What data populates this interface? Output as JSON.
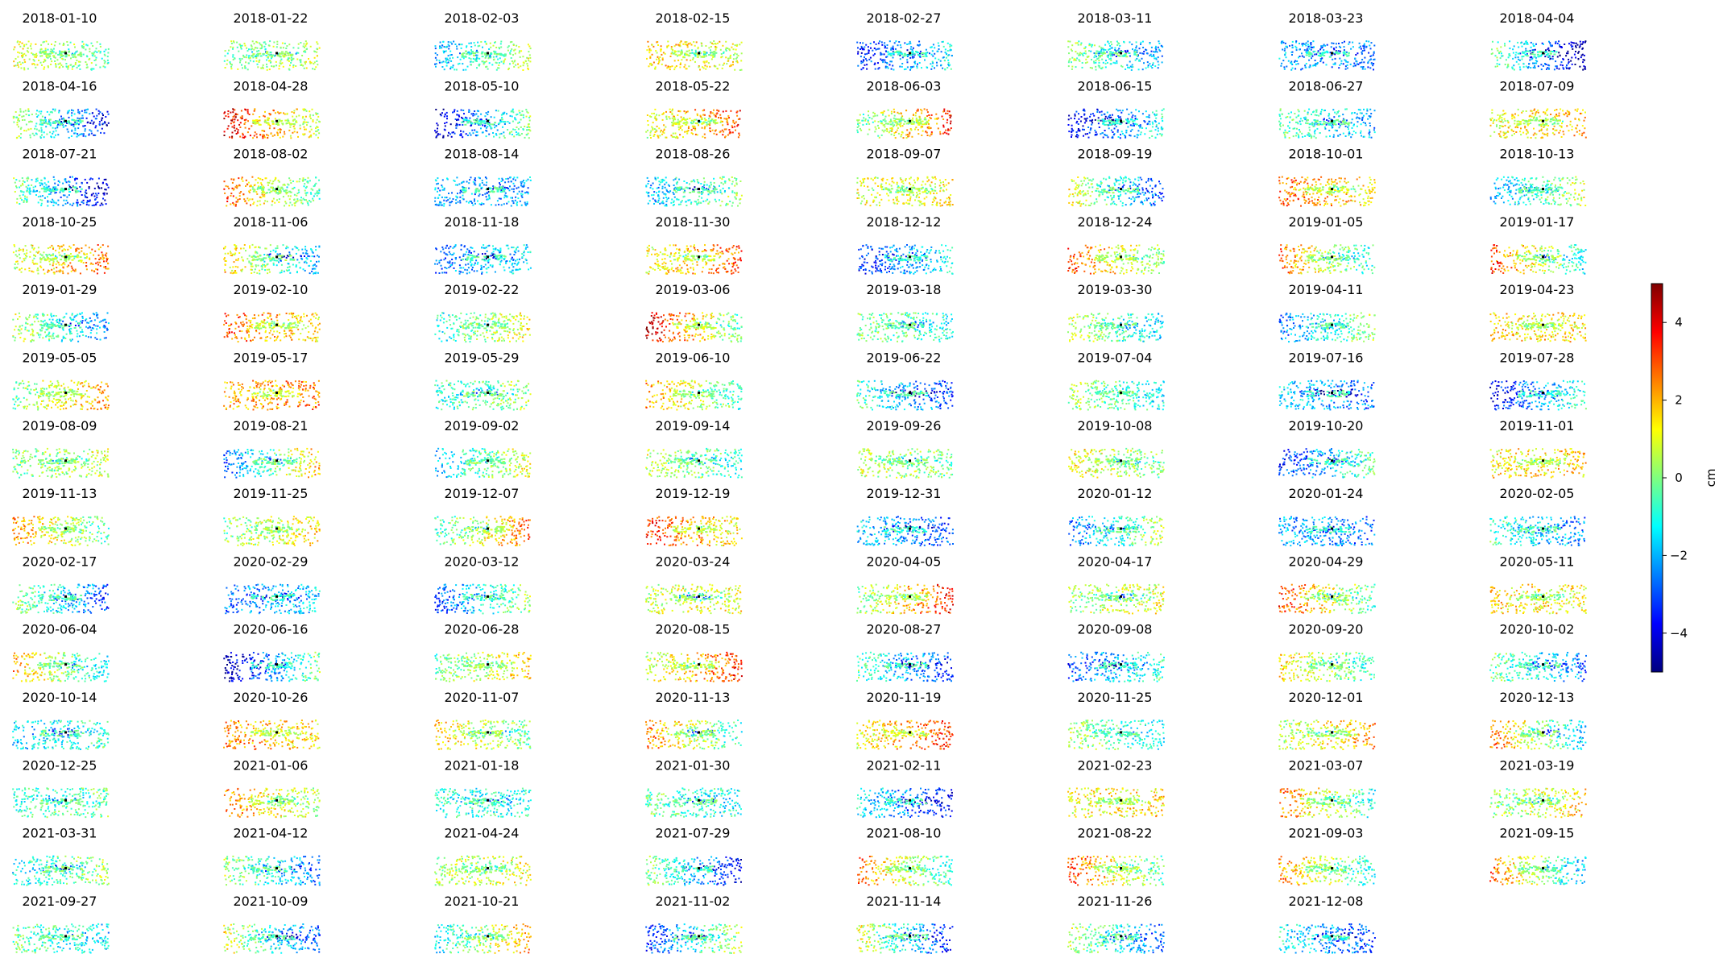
{
  "chart_data": {
    "type": "heatmap",
    "description_kind": "small-multiples",
    "layout": {
      "columns": 8,
      "rows": 14
    },
    "panels": [
      "2018-01-10",
      "2018-01-22",
      "2018-02-03",
      "2018-02-15",
      "2018-02-27",
      "2018-03-11",
      "2018-03-23",
      "2018-04-04",
      "2018-04-16",
      "2018-04-28",
      "2018-05-10",
      "2018-05-22",
      "2018-06-03",
      "2018-06-15",
      "2018-06-27",
      "2018-07-09",
      "2018-07-21",
      "2018-08-02",
      "2018-08-14",
      "2018-08-26",
      "2018-09-07",
      "2018-09-19",
      "2018-10-01",
      "2018-10-13",
      "2018-10-25",
      "2018-11-06",
      "2018-11-18",
      "2018-11-30",
      "2018-12-12",
      "2018-12-24",
      "2019-01-05",
      "2019-01-17",
      "2019-01-29",
      "2019-02-10",
      "2019-02-22",
      "2019-03-06",
      "2019-03-18",
      "2019-03-30",
      "2019-04-11",
      "2019-04-23",
      "2019-05-05",
      "2019-05-17",
      "2019-05-29",
      "2019-06-10",
      "2019-06-22",
      "2019-07-04",
      "2019-07-16",
      "2019-07-28",
      "2019-08-09",
      "2019-08-21",
      "2019-09-02",
      "2019-09-14",
      "2019-09-26",
      "2019-10-08",
      "2019-10-20",
      "2019-11-01",
      "2019-11-13",
      "2019-11-25",
      "2019-12-07",
      "2019-12-19",
      "2019-12-31",
      "2020-01-12",
      "2020-01-24",
      "2020-02-05",
      "2020-02-17",
      "2020-02-29",
      "2020-03-12",
      "2020-03-24",
      "2020-04-05",
      "2020-04-17",
      "2020-04-29",
      "2020-05-11",
      "2020-06-04",
      "2020-06-16",
      "2020-06-28",
      "2020-08-15",
      "2020-08-27",
      "2020-09-08",
      "2020-09-20",
      "2020-10-02",
      "2020-10-14",
      "2020-10-26",
      "2020-11-07",
      "2020-11-13",
      "2020-11-19",
      "2020-11-25",
      "2020-12-01",
      "2020-12-13",
      "2020-12-25",
      "2021-01-06",
      "2021-01-18",
      "2021-01-30",
      "2021-02-11",
      "2021-02-23",
      "2021-03-07",
      "2021-03-19",
      "2021-03-31",
      "2021-04-12",
      "2021-04-24",
      "2021-07-29",
      "2021-08-10",
      "2021-08-22",
      "2021-09-03",
      "2021-09-15",
      "2021-09-27",
      "2021-10-09",
      "2021-10-21",
      "2021-11-02",
      "2021-11-14",
      "2021-11-26",
      "2021-12-08"
    ],
    "colorbar": {
      "label": "cm",
      "colormap": "jet",
      "vmin": -5,
      "vmax": 5,
      "ticks": [
        4,
        2,
        0,
        -2,
        -4
      ],
      "tick_labels": [
        "4",
        "2",
        "0",
        "−2",
        "−4"
      ]
    },
    "colors": {
      "jet_stops": [
        "#00007f",
        "#0000ff",
        "#007fff",
        "#00ffff",
        "#7fff7f",
        "#ffff00",
        "#ff7f00",
        "#ff0000",
        "#7f0000"
      ]
    },
    "axes_visible": false,
    "grid": false
  }
}
